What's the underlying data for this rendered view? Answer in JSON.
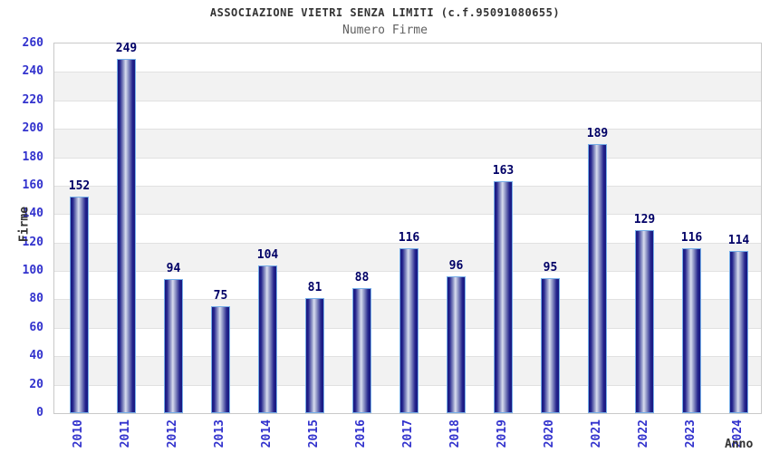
{
  "header": {
    "title": "ASSOCIAZIONE VIETRI SENZA LIMITI (c.f.95091080655)",
    "subtitle": "Numero Firme"
  },
  "chart_data": {
    "type": "bar",
    "title": "ASSOCIAZIONE VIETRI SENZA LIMITI (c.f.95091080655)",
    "subtitle": "Numero Firme",
    "categories": [
      "2010",
      "2011",
      "2012",
      "2013",
      "2014",
      "2015",
      "2016",
      "2017",
      "2018",
      "2019",
      "2020",
      "2021",
      "2022",
      "2023",
      "2024"
    ],
    "values": [
      152,
      249,
      94,
      75,
      104,
      81,
      88,
      116,
      96,
      163,
      95,
      189,
      129,
      116,
      114
    ],
    "xlabel": "Anno",
    "ylabel": "Firme",
    "ylim": [
      0,
      260
    ],
    "ytick_step": 20,
    "yticks": [
      0,
      20,
      40,
      60,
      80,
      100,
      120,
      140,
      160,
      180,
      200,
      220,
      240,
      260
    ],
    "grid": true,
    "legend": "none",
    "band_fill": "alternating"
  },
  "colors": {
    "tick_blue": "#3232cd",
    "value_label": "#000066",
    "bar_dark": "#181880",
    "bar_light": "#d8dcee",
    "bar_edge": "#76aee8",
    "band_gray": "#f2f2f2",
    "gridline": "#e1e1e1",
    "plot_border": "#c9c9c9",
    "title_color": "#333333",
    "subtitle_color": "#606060"
  }
}
